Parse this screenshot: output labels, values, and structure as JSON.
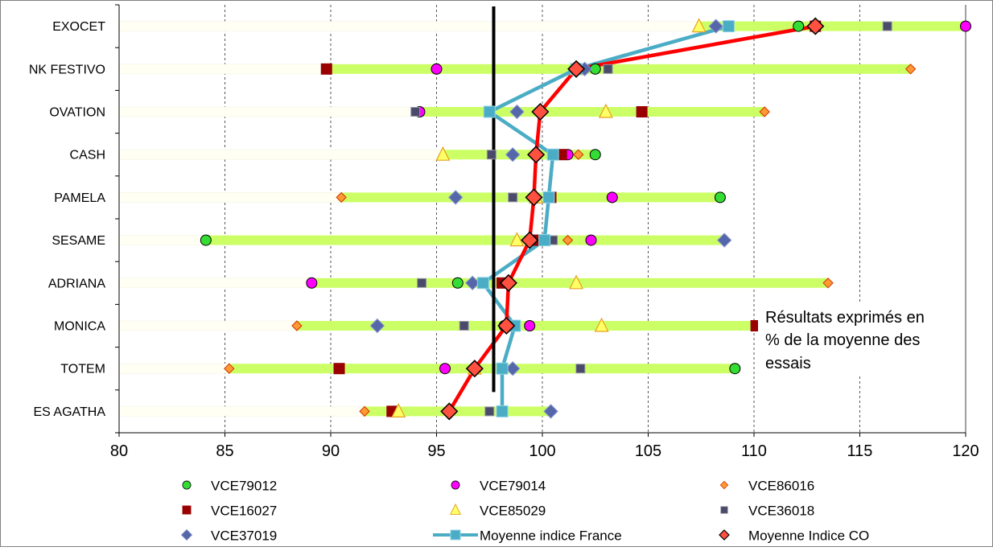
{
  "chart_data": {
    "type": "scatter",
    "categories": [
      "EXOCET",
      "NK FESTIVO",
      "OVATION",
      "CASH",
      "PAMELA",
      "SESAME",
      "ADRIANA",
      "MONICA",
      "TOTEM",
      "ES AGATHA"
    ],
    "xlim": [
      80,
      120
    ],
    "x_ticks": [
      80,
      85,
      90,
      95,
      100,
      105,
      110,
      115,
      120
    ],
    "grid": true,
    "legend_position": "bottom",
    "reference_line": 97.7,
    "annotation": "Résultats exprimés en % de la moyenne des essais",
    "annotation_lines": [
      "Résultats exprimés en",
      "% de la moyenne des",
      "essais"
    ],
    "range_bar_color": "#ccff66",
    "series": [
      {
        "name": "VCE79012",
        "marker": "circle",
        "color": "#33dd33",
        "values": [
          112.1,
          102.5,
          null,
          102.5,
          108.4,
          84.1,
          96.0,
          98.2,
          109.1,
          93.0
        ]
      },
      {
        "name": "VCE79014",
        "marker": "circle",
        "color": "#ff00ff",
        "values": [
          120.0,
          95.0,
          94.2,
          101.2,
          103.3,
          102.3,
          89.1,
          99.4,
          95.4,
          null
        ]
      },
      {
        "name": "VCE86016",
        "marker": "diamond-small",
        "color": "#ff9933",
        "values": [
          null,
          117.4,
          110.5,
          101.7,
          90.5,
          101.2,
          113.5,
          88.4,
          85.2,
          91.6
        ]
      },
      {
        "name": "VCE16027",
        "marker": "square",
        "color": "#990000",
        "values": [
          112.9,
          89.8,
          104.7,
          100.9,
          100.4,
          99.7,
          98.1,
          110.1,
          90.4,
          92.9
        ]
      },
      {
        "name": "VCE85029",
        "marker": "triangle",
        "color": "#ffff66",
        "values": [
          107.4,
          101.6,
          103.0,
          95.3,
          99.7,
          98.8,
          101.6,
          102.8,
          96.8,
          93.2
        ]
      },
      {
        "name": "VCE36018",
        "marker": "square-small",
        "color": "#4a4a6a",
        "values": [
          116.3,
          103.1,
          94.0,
          97.6,
          98.6,
          100.5,
          94.3,
          96.3,
          101.8,
          97.5
        ]
      },
      {
        "name": "VCE37019",
        "marker": "diamond",
        "color": "#5566aa",
        "values": [
          108.2,
          102.0,
          98.8,
          98.6,
          95.9,
          108.6,
          96.7,
          92.2,
          98.6,
          100.4
        ]
      },
      {
        "name": "Moyenne indice France",
        "marker": "square-line",
        "color": "#4bacc6",
        "values": [
          108.8,
          101.6,
          97.5,
          100.5,
          100.3,
          100.1,
          97.2,
          98.7,
          98.1,
          98.1
        ]
      },
      {
        "name": "Moyenne Indice CO",
        "marker": "diamond-line",
        "color": "#ff0000",
        "values": [
          112.9,
          101.6,
          99.9,
          99.7,
          99.6,
          99.4,
          98.4,
          98.3,
          96.8,
          95.6
        ]
      }
    ]
  }
}
